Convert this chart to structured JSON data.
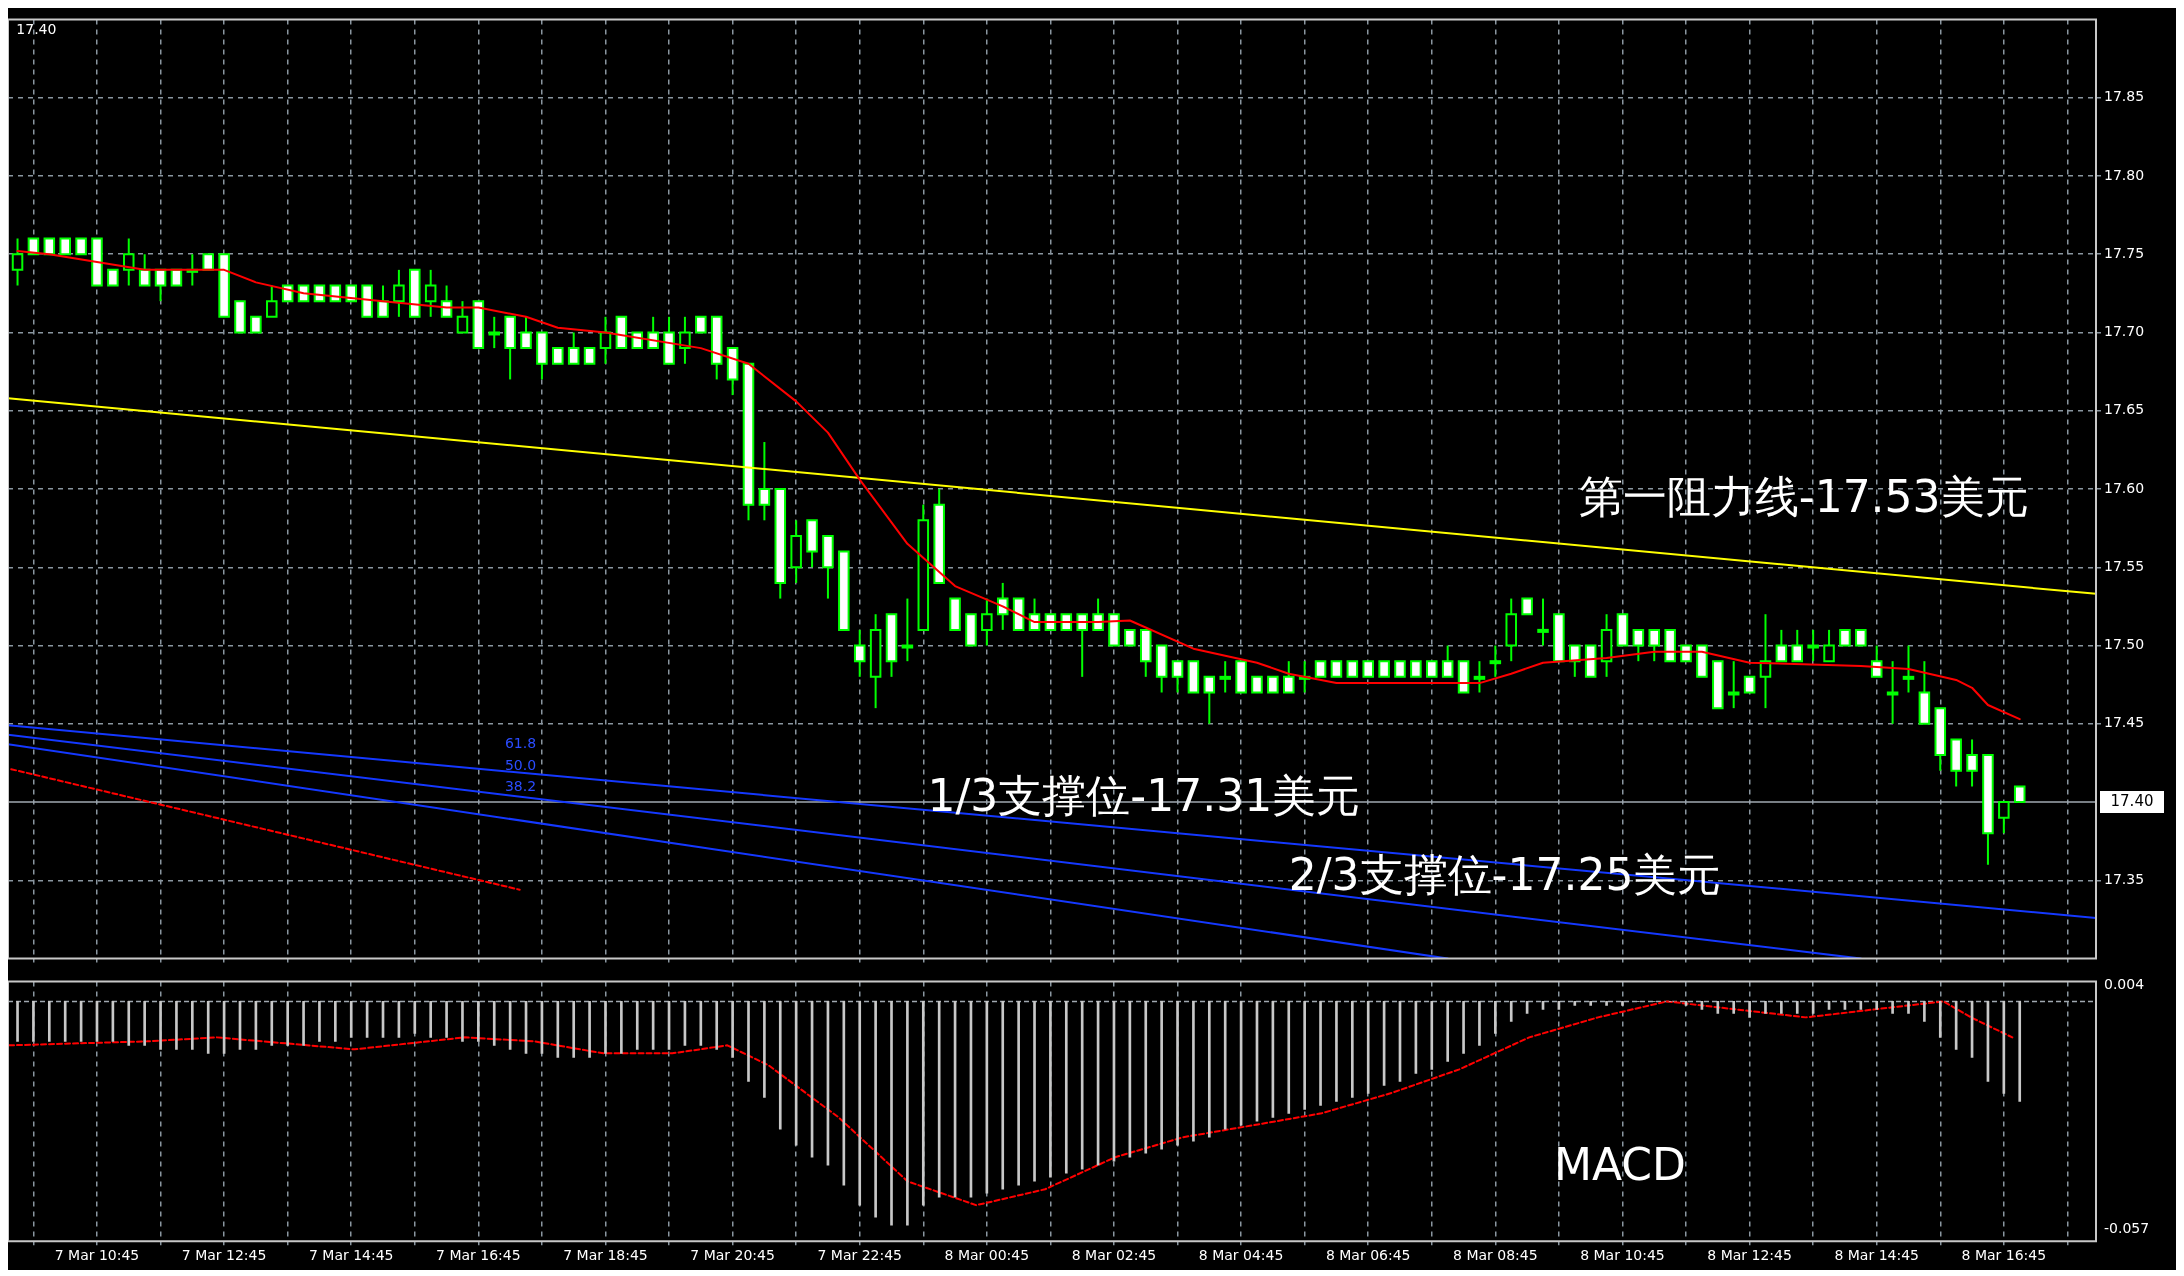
{
  "chart_data": [
    {
      "type": "candlestick",
      "color": "#00ff00",
      "colors": [
        "#000000",
        "#ffffff",
        "#ffffff",
        "#ffffff",
        "#ffffff",
        "#ffffff",
        "#ffffff",
        "#000000",
        "#ffffff",
        "#ffffff",
        "#ffffff",
        "#000000",
        "#ffffff",
        "#ffffff",
        "#ffffff",
        "#ffffff",
        "#000000",
        "#ffffff",
        "#ffffff",
        "#ffffff",
        "#ffffff",
        "#ffffff",
        "#ffffff",
        "#ffffff",
        "#000000",
        "#ffffff",
        "#000000",
        "#ffffff",
        "#000000",
        "#ffffff",
        "#000000",
        "#ffffff",
        "#ffffff",
        "#ffffff",
        "#ffffff",
        "#ffffff",
        "#ffffff",
        "#000000",
        "#ffffff",
        "#ffffff",
        "#ffffff",
        "#ffffff",
        "#000000",
        "#ffffff",
        "#ffffff",
        "#ffffff",
        "#ffffff",
        "#ffffff",
        "#ffffff",
        "#000000",
        "#ffffff",
        "#ffffff",
        "#ffffff",
        "#ffffff",
        "#000000",
        "#ffffff",
        "#000000",
        "#000000",
        "#ffffff",
        "#ffffff",
        "#ffffff",
        "#000000",
        "#ffffff",
        "#ffffff",
        "#ffffff",
        "#ffffff",
        "#ffffff",
        "#ffffff",
        "#ffffff",
        "#ffffff",
        "#ffffff",
        "#ffffff",
        "#ffffff",
        "#ffffff",
        "#ffffff",
        "#ffffff",
        "#000000",
        "#ffffff",
        "#ffffff",
        "#ffffff",
        "#ffffff",
        "#000000",
        "#ffffff",
        "#ffffff",
        "#ffffff",
        "#ffffff",
        "#ffffff",
        "#ffffff",
        "#ffffff",
        "#ffffff",
        "#ffffff",
        "#ffffff",
        "#000000",
        "#000000",
        "#000000",
        "#ffffff",
        "#000000",
        "#ffffff",
        "#ffffff",
        "#ffffff",
        "#000000",
        "#ffffff",
        "#ffffff",
        "#ffffff",
        "#ffffff",
        "#ffffff",
        "#ffffff",
        "#ffffff",
        "#000000",
        "#ffffff",
        "#000000",
        "#ffffff",
        "#ffffff",
        "#000000",
        "#000000",
        "#ffffff",
        "#ffffff",
        "#ffffff",
        "#000000",
        "#000000",
        "#ffffff",
        "#ffffff",
        "#ffffff",
        "#ffffff",
        "#ffffff",
        "#000000",
        "#ffffff"
      ],
      "tick_labels": "y",
      "grid": true,
      "x": [
        "--03-07T09:30",
        "--03-07T09:45",
        "--03-07T10:00",
        "--03-07T10:15",
        "--03-07T10:30",
        "--03-07T10:45",
        "--03-07T11:00",
        "--03-07T11:15",
        "--03-07T11:30",
        "--03-07T11:45",
        "--03-07T12:00",
        "--03-07T12:15",
        "--03-07T12:30",
        "--03-07T12:45",
        "--03-07T13:00",
        "--03-07T13:15",
        "--03-07T13:30",
        "--03-07T13:45",
        "--03-07T14:00",
        "--03-07T14:15",
        "--03-07T14:30",
        "--03-07T14:45",
        "--03-07T15:00",
        "--03-07T15:15",
        "--03-07T15:30",
        "--03-07T15:45",
        "--03-07T16:00",
        "--03-07T16:15",
        "--03-07T16:30",
        "--03-07T16:45",
        "--03-07T17:00",
        "--03-07T17:15",
        "--03-07T17:30",
        "--03-07T17:45",
        "--03-07T18:00",
        "--03-07T18:15",
        "--03-07T18:30",
        "--03-07T18:45",
        "--03-07T19:00",
        "--03-07T19:15",
        "--03-07T19:30",
        "--03-07T19:45",
        "--03-07T20:00",
        "--03-07T20:15",
        "--03-07T20:30",
        "--03-07T20:45",
        "--03-07T21:00",
        "--03-07T21:15",
        "--03-07T21:30",
        "--03-07T21:45",
        "--03-07T22:00",
        "--03-07T22:15",
        "--03-07T22:30",
        "--03-07T22:45",
        "--03-07T23:00",
        "--03-07T23:15",
        "--03-07T23:30",
        "--03-07T23:45",
        "--03-08T00:00",
        "--03-08T00:15",
        "--03-08T00:30",
        "--03-08T00:45",
        "--03-08T01:00",
        "--03-08T01:15",
        "--03-08T01:30",
        "--03-08T01:45",
        "--03-08T02:00",
        "--03-08T02:15",
        "--03-08T02:30",
        "--03-08T02:45",
        "--03-08T03:00",
        "--03-08T03:15",
        "--03-08T03:30",
        "--03-08T03:45",
        "--03-08T04:00",
        "--03-08T04:15",
        "--03-08T04:30",
        "--03-08T04:45",
        "--03-08T05:00",
        "--03-08T05:15",
        "--03-08T05:30",
        "--03-08T05:45",
        "--03-08T06:00",
        "--03-08T06:15",
        "--03-08T06:30",
        "--03-08T06:45",
        "--03-08T07:00",
        "--03-08T07:15",
        "--03-08T07:30",
        "--03-08T07:45",
        "--03-08T08:00",
        "--03-08T08:15",
        "--03-08T08:30",
        "--03-08T08:45",
        "--03-08T09:00",
        "--03-08T09:15",
        "--03-08T09:30",
        "--03-08T09:45",
        "--03-08T10:00",
        "--03-08T10:15",
        "--03-08T10:30",
        "--03-08T10:45",
        "--03-08T11:00",
        "--03-08T11:15",
        "--03-08T11:30",
        "--03-08T11:45",
        "--03-08T12:00",
        "--03-08T12:15",
        "--03-08T12:30",
        "--03-08T12:45",
        "--03-08T13:00",
        "--03-08T13:15",
        "--03-08T13:30",
        "--03-08T13:45",
        "--03-08T14:00",
        "--03-08T14:15",
        "--03-08T14:30",
        "--03-08T14:45",
        "--03-08T15:00",
        "--03-08T15:15",
        "--03-08T15:30",
        "--03-08T15:45",
        "--03-08T16:00",
        "--03-08T16:15",
        "--03-08T16:30",
        "--03-08T16:45",
        "--03-08T17:00"
      ],
      "ohlc": [
        [
          17.74,
          17.76,
          17.73,
          17.75
        ],
        [
          17.76,
          17.76,
          17.75,
          17.75
        ],
        [
          17.76,
          17.76,
          17.75,
          17.75
        ],
        [
          17.76,
          17.76,
          17.75,
          17.75
        ],
        [
          17.76,
          17.76,
          17.75,
          17.75
        ],
        [
          17.76,
          17.76,
          17.73,
          17.73
        ],
        [
          17.74,
          17.74,
          17.73,
          17.73
        ],
        [
          17.74,
          17.76,
          17.73,
          17.75
        ],
        [
          17.74,
          17.75,
          17.73,
          17.73
        ],
        [
          17.74,
          17.74,
          17.72,
          17.73
        ],
        [
          17.74,
          17.74,
          17.73,
          17.73
        ],
        [
          17.74,
          17.75,
          17.73,
          17.74
        ],
        [
          17.75,
          17.75,
          17.74,
          17.74
        ],
        [
          17.75,
          17.75,
          17.71,
          17.71
        ],
        [
          17.72,
          17.72,
          17.7,
          17.7
        ],
        [
          17.71,
          17.71,
          17.7,
          17.7
        ],
        [
          17.71,
          17.73,
          17.71,
          17.72
        ],
        [
          17.73,
          17.73,
          17.72,
          17.72
        ],
        [
          17.73,
          17.73,
          17.72,
          17.72
        ],
        [
          17.73,
          17.73,
          17.72,
          17.72
        ],
        [
          17.73,
          17.73,
          17.72,
          17.72
        ],
        [
          17.73,
          17.73,
          17.72,
          17.72
        ],
        [
          17.73,
          17.73,
          17.71,
          17.71
        ],
        [
          17.72,
          17.73,
          17.71,
          17.71
        ],
        [
          17.72,
          17.74,
          17.71,
          17.73
        ],
        [
          17.74,
          17.74,
          17.71,
          17.71
        ],
        [
          17.72,
          17.74,
          17.71,
          17.73
        ],
        [
          17.72,
          17.73,
          17.71,
          17.71
        ],
        [
          17.7,
          17.72,
          17.7,
          17.71
        ],
        [
          17.72,
          17.72,
          17.69,
          17.69
        ],
        [
          17.7,
          17.71,
          17.69,
          17.7
        ],
        [
          17.71,
          17.71,
          17.67,
          17.69
        ],
        [
          17.7,
          17.71,
          17.69,
          17.69
        ],
        [
          17.7,
          17.7,
          17.67,
          17.68
        ],
        [
          17.69,
          17.69,
          17.68,
          17.68
        ],
        [
          17.69,
          17.7,
          17.68,
          17.68
        ],
        [
          17.69,
          17.69,
          17.68,
          17.68
        ],
        [
          17.69,
          17.71,
          17.68,
          17.7
        ],
        [
          17.71,
          17.71,
          17.69,
          17.69
        ],
        [
          17.7,
          17.7,
          17.69,
          17.69
        ],
        [
          17.7,
          17.71,
          17.69,
          17.69
        ],
        [
          17.7,
          17.71,
          17.68,
          17.68
        ],
        [
          17.69,
          17.71,
          17.68,
          17.7
        ],
        [
          17.71,
          17.71,
          17.7,
          17.7
        ],
        [
          17.71,
          17.71,
          17.67,
          17.68
        ],
        [
          17.69,
          17.69,
          17.66,
          17.67
        ],
        [
          17.68,
          17.68,
          17.58,
          17.59
        ],
        [
          17.6,
          17.63,
          17.58,
          17.59
        ],
        [
          17.6,
          17.6,
          17.53,
          17.54
        ],
        [
          17.55,
          17.58,
          17.54,
          17.57
        ],
        [
          17.58,
          17.58,
          17.55,
          17.56
        ],
        [
          17.57,
          17.57,
          17.53,
          17.55
        ],
        [
          17.56,
          17.56,
          17.51,
          17.51
        ],
        [
          17.5,
          17.51,
          17.48,
          17.49
        ],
        [
          17.48,
          17.52,
          17.46,
          17.51
        ],
        [
          17.52,
          17.52,
          17.48,
          17.49
        ],
        [
          17.5,
          17.53,
          17.49,
          17.5
        ],
        [
          17.51,
          17.59,
          17.51,
          17.58
        ],
        [
          17.59,
          17.6,
          17.54,
          17.54
        ],
        [
          17.53,
          17.53,
          17.51,
          17.51
        ],
        [
          17.52,
          17.52,
          17.5,
          17.5
        ],
        [
          17.51,
          17.53,
          17.5,
          17.52
        ],
        [
          17.53,
          17.54,
          17.51,
          17.52
        ],
        [
          17.53,
          17.53,
          17.51,
          17.51
        ],
        [
          17.52,
          17.53,
          17.51,
          17.51
        ],
        [
          17.52,
          17.52,
          17.51,
          17.51
        ],
        [
          17.52,
          17.52,
          17.51,
          17.51
        ],
        [
          17.52,
          17.52,
          17.48,
          17.51
        ],
        [
          17.52,
          17.53,
          17.51,
          17.51
        ],
        [
          17.52,
          17.52,
          17.5,
          17.5
        ],
        [
          17.51,
          17.51,
          17.5,
          17.5
        ],
        [
          17.51,
          17.51,
          17.48,
          17.49
        ],
        [
          17.5,
          17.5,
          17.47,
          17.48
        ],
        [
          17.49,
          17.49,
          17.47,
          17.48
        ],
        [
          17.49,
          17.49,
          17.47,
          17.47
        ],
        [
          17.48,
          17.48,
          17.45,
          17.47
        ],
        [
          17.48,
          17.49,
          17.47,
          17.48
        ],
        [
          17.49,
          17.49,
          17.47,
          17.47
        ],
        [
          17.48,
          17.48,
          17.47,
          17.47
        ],
        [
          17.48,
          17.48,
          17.47,
          17.47
        ],
        [
          17.48,
          17.49,
          17.47,
          17.47
        ],
        [
          17.48,
          17.49,
          17.47,
          17.48
        ],
        [
          17.49,
          17.49,
          17.48,
          17.48
        ],
        [
          17.49,
          17.49,
          17.48,
          17.48
        ],
        [
          17.49,
          17.49,
          17.48,
          17.48
        ],
        [
          17.49,
          17.49,
          17.48,
          17.48
        ],
        [
          17.49,
          17.49,
          17.48,
          17.48
        ],
        [
          17.49,
          17.49,
          17.48,
          17.48
        ],
        [
          17.49,
          17.49,
          17.48,
          17.48
        ],
        [
          17.49,
          17.49,
          17.48,
          17.48
        ],
        [
          17.49,
          17.5,
          17.48,
          17.48
        ],
        [
          17.49,
          17.49,
          17.47,
          17.47
        ],
        [
          17.48,
          17.49,
          17.47,
          17.48
        ],
        [
          17.49,
          17.5,
          17.48,
          17.49
        ],
        [
          17.5,
          17.53,
          17.49,
          17.52
        ],
        [
          17.53,
          17.53,
          17.52,
          17.52
        ],
        [
          17.51,
          17.53,
          17.5,
          17.51
        ],
        [
          17.52,
          17.52,
          17.49,
          17.49
        ],
        [
          17.5,
          17.5,
          17.48,
          17.49
        ],
        [
          17.5,
          17.5,
          17.48,
          17.48
        ],
        [
          17.49,
          17.52,
          17.48,
          17.51
        ],
        [
          17.52,
          17.52,
          17.5,
          17.5
        ],
        [
          17.51,
          17.51,
          17.49,
          17.5
        ],
        [
          17.51,
          17.51,
          17.49,
          17.5
        ],
        [
          17.51,
          17.51,
          17.49,
          17.49
        ],
        [
          17.5,
          17.5,
          17.49,
          17.49
        ],
        [
          17.5,
          17.5,
          17.48,
          17.48
        ],
        [
          17.49,
          17.49,
          17.46,
          17.46
        ],
        [
          17.47,
          17.49,
          17.46,
          17.47
        ],
        [
          17.48,
          17.48,
          17.47,
          17.47
        ],
        [
          17.48,
          17.52,
          17.46,
          17.49
        ],
        [
          17.5,
          17.51,
          17.49,
          17.49
        ],
        [
          17.5,
          17.51,
          17.49,
          17.49
        ],
        [
          17.5,
          17.51,
          17.49,
          17.5
        ],
        [
          17.49,
          17.51,
          17.49,
          17.5
        ],
        [
          17.51,
          17.51,
          17.5,
          17.5
        ],
        [
          17.51,
          17.51,
          17.5,
          17.5
        ],
        [
          17.49,
          17.5,
          17.48,
          17.48
        ],
        [
          17.47,
          17.49,
          17.45,
          17.47
        ],
        [
          17.48,
          17.5,
          17.47,
          17.48
        ],
        [
          17.47,
          17.49,
          17.45,
          17.45
        ],
        [
          17.46,
          17.46,
          17.42,
          17.43
        ],
        [
          17.44,
          17.44,
          17.41,
          17.42
        ],
        [
          17.43,
          17.44,
          17.41,
          17.42
        ],
        [
          17.43,
          17.43,
          17.36,
          17.38
        ],
        [
          17.39,
          17.4,
          17.38,
          17.4
        ],
        [
          17.41,
          17.41,
          17.4,
          17.4
        ]
      ],
      "xlim": [
        "--03-07T09:21",
        "--03-08T18:12"
      ],
      "ylim": [
        17.3,
        17.9
      ],
      "xticks": [
        {
          "value": "--03-07T09:45",
          "label": null
        },
        {
          "value": "--03-07T10:45",
          "label": null
        },
        {
          "value": "--03-07T11:45",
          "label": null
        },
        {
          "value": "--03-07T12:45",
          "label": null
        },
        {
          "value": "--03-07T13:45",
          "label": null
        },
        {
          "value": "--03-07T14:45",
          "label": null
        },
        {
          "value": "--03-07T15:45",
          "label": null
        },
        {
          "value": "--03-07T16:45",
          "label": null
        },
        {
          "value": "--03-07T17:45",
          "label": null
        },
        {
          "value": "--03-07T18:45",
          "label": null
        },
        {
          "value": "--03-07T19:45",
          "label": null
        },
        {
          "value": "--03-07T20:45",
          "label": null
        },
        {
          "value": "--03-07T21:45",
          "label": null
        },
        {
          "value": "--03-07T22:45",
          "label": null
        },
        {
          "value": "--03-07T23:45",
          "label": null
        },
        {
          "value": "--03-08T00:45",
          "label": null
        },
        {
          "value": "--03-08T01:45",
          "label": null
        },
        {
          "value": "--03-08T02:45",
          "label": null
        },
        {
          "value": "--03-08T03:45",
          "label": null
        },
        {
          "value": "--03-08T04:45",
          "label": null
        },
        {
          "value": "--03-08T05:45",
          "label": null
        },
        {
          "value": "--03-08T06:45",
          "label": null
        },
        {
          "value": "--03-08T07:45",
          "label": null
        },
        {
          "value": "--03-08T08:45",
          "label": null
        },
        {
          "value": "--03-08T09:45",
          "label": null
        },
        {
          "value": "--03-08T10:45",
          "label": null
        },
        {
          "value": "--03-08T11:45",
          "label": null
        },
        {
          "value": "--03-08T12:45",
          "label": null
        },
        {
          "value": "--03-08T13:45",
          "label": null
        },
        {
          "value": "--03-08T14:45",
          "label": null
        },
        {
          "value": "--03-08T15:45",
          "label": null
        },
        {
          "value": "--03-08T16:45",
          "label": null
        },
        {
          "value": "--03-08T17:45",
          "label": null
        }
      ],
      "yticks": [
        17.35,
        17.45,
        {
          "value": 17.5,
          "label": "17.50"
        },
        17.55,
        {
          "value": 17.6,
          "label": "17.60"
        },
        17.65,
        {
          "value": 17.7,
          "label": "17.70"
        },
        17.75,
        {
          "value": 17.8,
          "label": "17.80"
        },
        17.85
      ],
      "series": [
        {
          "type": "line",
          "color": "#ff0000",
          "x": [
            "--03-07T09:30",
            "--03-07T10:00",
            "--03-07T10:45",
            "--03-07T11:30",
            "--03-07T12:45",
            "--03-07T13:15",
            "--03-07T14:00",
            "--03-07T15:15",
            "--03-07T16:15",
            "--03-07T16:45",
            "--03-07T17:30",
            "--03-07T18:00",
            "--03-07T18:45",
            "--03-07T20:15",
            "--03-07T21:00",
            "--03-07T21:45",
            "--03-07T22:15",
            "--03-07T22:45",
            "--03-07T23:30",
            "--03-08T00:15",
            "--03-08T01:00",
            "--03-08T01:30",
            "--03-08T02:30",
            "--03-08T03:00",
            "--03-08T04:00",
            "--03-08T05:00",
            "--03-08T05:30",
            "--03-08T06:15",
            "--03-08T08:30",
            "--03-08T09:00",
            "--03-08T09:30",
            "--03-08T10:30",
            "--03-08T11:15",
            "--03-08T12:00",
            "--03-08T12:45",
            "--03-08T14:30",
            "--03-08T15:15",
            "--03-08T16:00",
            "--03-08T16:15",
            "--03-08T16:30",
            "--03-08T17:00"
          ],
          "values": [
            17.752,
            17.75,
            17.745,
            17.74,
            17.74,
            17.732,
            17.725,
            17.72,
            17.716,
            17.716,
            17.71,
            17.703,
            17.7,
            17.69,
            17.68,
            17.656,
            17.636,
            17.606,
            17.565,
            17.538,
            17.525,
            17.515,
            17.515,
            17.516,
            17.498,
            17.489,
            17.482,
            17.476,
            17.476,
            17.482,
            17.489,
            17.492,
            17.496,
            17.496,
            17.489,
            17.487,
            17.485,
            17.478,
            17.473,
            17.462,
            17.453
          ]
        },
        {
          "type": "line",
          "color": "#ffff00",
          "x": [
            "--03-07T09:21",
            "--03-08T18:12"
          ],
          "values": [
            17.658,
            17.533
          ]
        },
        {
          "type": "line",
          "color": "#1438ff",
          "x": [
            "--03-07T09:21",
            "--03-08T18:12"
          ],
          "values": [
            17.449,
            17.326
          ]
        },
        {
          "type": "line",
          "color": "#1438ff",
          "x": [
            "--03-07T09:21",
            "--03-08T14:30"
          ],
          "values": [
            17.443,
            17.3
          ]
        },
        {
          "type": "line",
          "color": "#1438ff",
          "x": [
            "--03-07T09:21",
            "--03-08T08:00"
          ],
          "values": [
            17.437,
            17.3
          ]
        },
        {
          "type": "line",
          "color": "#ff0000",
          "line_style": "dashed",
          "x": [
            "--03-07T09:24",
            "--03-07T17:24"
          ],
          "values": [
            17.421,
            17.344
          ]
        }
      ],
      "ref_lines": [
        {
          "axis": "y",
          "value": 17.4,
          "label": "17.40",
          "color": "#a0a8b0"
        }
      ],
      "annotations": [
        "17.40",
        "第一阻力线-17.53美元",
        "1/3支撑位-17.31美元",
        "2/3支撑位-17.25美元",
        "61.8",
        "50.0",
        "38.2"
      ]
    },
    {
      "type": "bar",
      "grid": "x",
      "x": [
        "--03-07T09:30",
        "--03-07T09:45",
        "--03-07T10:00",
        "--03-07T10:15",
        "--03-07T10:30",
        "--03-07T10:45",
        "--03-07T11:00",
        "--03-07T11:15",
        "--03-07T11:30",
        "--03-07T11:45",
        "--03-07T12:00",
        "--03-07T12:15",
        "--03-07T12:30",
        "--03-07T12:45",
        "--03-07T13:00",
        "--03-07T13:15",
        "--03-07T13:30",
        "--03-07T13:45",
        "--03-07T14:00",
        "--03-07T14:15",
        "--03-07T14:30",
        "--03-07T14:45",
        "--03-07T15:00",
        "--03-07T15:15",
        "--03-07T15:30",
        "--03-07T15:45",
        "--03-07T16:00",
        "--03-07T16:15",
        "--03-07T16:30",
        "--03-07T16:45",
        "--03-07T17:00",
        "--03-07T17:15",
        "--03-07T17:30",
        "--03-07T17:45",
        "--03-07T18:00",
        "--03-07T18:15",
        "--03-07T18:30",
        "--03-07T18:45",
        "--03-07T19:00",
        "--03-07T19:15",
        "--03-07T19:30",
        "--03-07T19:45",
        "--03-07T20:00",
        "--03-07T20:15",
        "--03-07T20:30",
        "--03-07T20:45",
        "--03-07T21:00",
        "--03-07T21:15",
        "--03-07T21:30",
        "--03-07T21:45",
        "--03-07T22:00",
        "--03-07T22:15",
        "--03-07T22:30",
        "--03-07T22:45",
        "--03-07T23:00",
        "--03-07T23:15",
        "--03-07T23:30",
        "--03-07T23:45",
        "--03-08T00:00",
        "--03-08T00:15",
        "--03-08T00:30",
        "--03-08T00:45",
        "--03-08T01:00",
        "--03-08T01:15",
        "--03-08T01:30",
        "--03-08T01:45",
        "--03-08T02:00",
        "--03-08T02:15",
        "--03-08T02:30",
        "--03-08T02:45",
        "--03-08T03:00",
        "--03-08T03:15",
        "--03-08T03:30",
        "--03-08T03:45",
        "--03-08T04:00",
        "--03-08T04:15",
        "--03-08T04:30",
        "--03-08T04:45",
        "--03-08T05:00",
        "--03-08T05:15",
        "--03-08T05:30",
        "--03-08T05:45",
        "--03-08T06:00",
        "--03-08T06:15",
        "--03-08T06:30",
        "--03-08T06:45",
        "--03-08T07:00",
        "--03-08T07:15",
        "--03-08T07:30",
        "--03-08T07:45",
        "--03-08T08:00",
        "--03-08T08:15",
        "--03-08T08:30",
        "--03-08T08:45",
        "--03-08T09:00",
        "--03-08T09:15",
        "--03-08T09:30",
        "--03-08T09:45",
        "--03-08T10:00",
        "--03-08T10:15",
        "--03-08T10:30",
        "--03-08T10:45",
        "--03-08T11:00",
        "--03-08T11:15",
        "--03-08T11:30",
        "--03-08T11:45",
        "--03-08T12:00",
        "--03-08T12:15",
        "--03-08T12:30",
        "--03-08T12:45",
        "--03-08T13:00",
        "--03-08T13:15",
        "--03-08T13:30",
        "--03-08T13:45",
        "--03-08T14:00",
        "--03-08T14:15",
        "--03-08T14:30",
        "--03-08T14:45",
        "--03-08T15:00",
        "--03-08T15:15",
        "--03-08T15:30",
        "--03-08T15:45",
        "--03-08T16:00",
        "--03-08T16:15",
        "--03-08T16:30",
        "--03-08T16:45",
        "--03-08T17:00"
      ],
      "xlim": [
        "--03-07T09:21",
        "--03-08T18:12"
      ],
      "ylim": [
        -0.06,
        0.005
      ],
      "xticks": [
        {
          "value": "--03-07T09:45",
          "label": null
        },
        {
          "value": "--03-07T10:45",
          "label": "7 Mar 10:45"
        },
        {
          "value": "--03-07T11:45",
          "label": null
        },
        {
          "value": "--03-07T12:45",
          "label": "7 Mar 12:45"
        },
        {
          "value": "--03-07T13:45",
          "label": null
        },
        {
          "value": "--03-07T14:45",
          "label": "7 Mar 14:45"
        },
        {
          "value": "--03-07T15:45",
          "label": null
        },
        {
          "value": "--03-07T16:45",
          "label": "7 Mar 16:45"
        },
        {
          "value": "--03-07T17:45",
          "label": null
        },
        {
          "value": "--03-07T18:45",
          "label": "7 Mar 18:45"
        },
        {
          "value": "--03-07T19:45",
          "label": null
        },
        {
          "value": "--03-07T20:45",
          "label": "7 Mar 20:45"
        },
        {
          "value": "--03-07T21:45",
          "label": null
        },
        {
          "value": "--03-07T22:45",
          "label": "7 Mar 22:45"
        },
        {
          "value": "--03-07T23:45",
          "label": null
        },
        {
          "value": "--03-08T00:45",
          "label": "8 Mar 00:45"
        },
        {
          "value": "--03-08T01:45",
          "label": null
        },
        {
          "value": "--03-08T02:45",
          "label": "8 Mar 02:45"
        },
        {
          "value": "--03-08T03:45",
          "label": null
        },
        {
          "value": "--03-08T04:45",
          "label": "8 Mar 04:45"
        },
        {
          "value": "--03-08T05:45",
          "label": null
        },
        {
          "value": "--03-08T06:45",
          "label": "8 Mar 06:45"
        },
        {
          "value": "--03-08T07:45",
          "label": null
        },
        {
          "value": "--03-08T08:45",
          "label": "8 Mar 08:45"
        },
        {
          "value": "--03-08T09:45",
          "label": null
        },
        {
          "value": "--03-08T10:45",
          "label": "8 Mar 10:45"
        },
        {
          "value": "--03-08T11:45",
          "label": null
        },
        {
          "value": "--03-08T12:45",
          "label": "8 Mar 12:45"
        },
        {
          "value": "--03-08T13:45",
          "label": null
        },
        {
          "value": "--03-08T14:45",
          "label": "8 Mar 14:45"
        },
        {
          "value": "--03-08T15:45",
          "label": null
        },
        {
          "value": "--03-08T16:45",
          "label": "8 Mar 16:45"
        },
        {
          "value": "--03-08T17:45",
          "label": null
        }
      ],
      "yticks": [
        -0.057,
        0.004
      ],
      "series": [
        {
          "type": "bar",
          "color": "#c8c8c8",
          "values": [
            -0.01,
            -0.01,
            -0.01,
            -0.01,
            -0.01,
            -0.01,
            -0.01,
            -0.011,
            -0.011,
            -0.012,
            -0.012,
            -0.012,
            -0.013,
            -0.013,
            -0.012,
            -0.012,
            -0.011,
            -0.011,
            -0.011,
            -0.01,
            -0.01,
            -0.009,
            -0.009,
            -0.009,
            -0.009,
            -0.008,
            -0.009,
            -0.009,
            -0.01,
            -0.01,
            -0.011,
            -0.012,
            -0.013,
            -0.013,
            -0.014,
            -0.014,
            -0.014,
            -0.013,
            -0.013,
            -0.012,
            -0.012,
            -0.012,
            -0.011,
            -0.011,
            -0.012,
            -0.014,
            -0.02,
            -0.024,
            -0.032,
            -0.036,
            -0.039,
            -0.041,
            -0.046,
            -0.051,
            -0.054,
            -0.056,
            -0.056,
            -0.051,
            -0.049,
            -0.049,
            -0.049,
            -0.048,
            -0.047,
            -0.046,
            -0.045,
            -0.044,
            -0.043,
            -0.042,
            -0.041,
            -0.04,
            -0.039,
            -0.038,
            -0.037,
            -0.036,
            -0.035,
            -0.034,
            -0.032,
            -0.031,
            -0.03,
            -0.029,
            -0.028,
            -0.027,
            -0.026,
            -0.025,
            -0.024,
            -0.023,
            -0.021,
            -0.02,
            -0.018,
            -0.017,
            -0.015,
            -0.013,
            -0.011,
            -0.008,
            -0.005,
            -0.003,
            -0.002,
            -0.002,
            -0.001,
            -0.001,
            -0.001,
            -0.001,
            0,
            0,
            0,
            -0.001,
            -0.002,
            -0.003,
            -0.003,
            -0.004,
            -0.003,
            -0.003,
            -0.003,
            -0.003,
            -0.002,
            -0.002,
            -0.002,
            -0.002,
            -0.003,
            -0.003,
            -0.005,
            -0.009,
            -0.012,
            -0.014,
            -0.02,
            -0.023,
            -0.025
          ]
        },
        {
          "type": "line",
          "color": "#ff0000",
          "line_style": "dashed",
          "x": [
            "--03-07T09:22",
            "--03-07T11:32",
            "--03-07T12:38",
            "--03-07T14:48",
            "--03-07T16:32",
            "--03-07T17:38",
            "--03-07T18:43",
            "--03-07T19:48",
            "--03-07T20:40",
            "--03-07T21:19",
            "--03-07T22:25",
            "--03-07T23:30",
            "--03-08T00:35",
            "--03-08T01:40",
            "--03-08T02:46",
            "--03-08T03:50",
            "--03-08T04:56",
            "--03-08T06:01",
            "--03-08T07:06",
            "--03-08T08:11",
            "--03-08T09:17",
            "--03-08T10:22",
            "--03-08T11:27",
            "--03-08T12:32",
            "--03-08T13:38",
            "--03-08T14:43",
            "--03-08T15:48",
            "--03-08T16:14",
            "--03-08T16:53"
          ],
          "values": [
            -0.011,
            -0.01,
            -0.009,
            -0.012,
            -0.009,
            -0.01,
            -0.013,
            -0.013,
            -0.011,
            -0.016,
            -0.029,
            -0.045,
            -0.051,
            -0.047,
            -0.039,
            -0.034,
            -0.031,
            -0.028,
            -0.023,
            -0.017,
            -0.009,
            -0.004,
            0,
            -0.002,
            -0.004,
            -0.002,
            0,
            -0.004,
            -0.009
          ]
        }
      ],
      "ref_lines": [
        {
          "axis": "y",
          "value": 0,
          "color": "#a0a8b0",
          "line_style": "dashed"
        }
      ],
      "annotations": [
        "MACD"
      ]
    }
  ]
}
